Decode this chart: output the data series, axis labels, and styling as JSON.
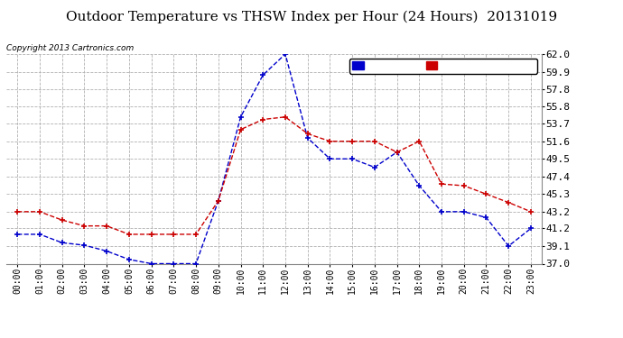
{
  "title": "Outdoor Temperature vs THSW Index per Hour (24 Hours)  20131019",
  "copyright": "Copyright 2013 Cartronics.com",
  "background_color": "#ffffff",
  "plot_background": "#ffffff",
  "grid_color": "#b0b0b0",
  "hours": [
    "00:00",
    "01:00",
    "02:00",
    "03:00",
    "04:00",
    "05:00",
    "06:00",
    "07:00",
    "08:00",
    "09:00",
    "10:00",
    "11:00",
    "12:00",
    "13:00",
    "14:00",
    "15:00",
    "16:00",
    "17:00",
    "18:00",
    "19:00",
    "20:00",
    "21:00",
    "22:00",
    "23:00"
  ],
  "thsw": [
    40.5,
    40.5,
    39.5,
    39.2,
    38.5,
    37.5,
    37.0,
    37.0,
    37.0,
    44.5,
    54.5,
    59.5,
    62.0,
    52.0,
    49.5,
    49.5,
    48.5,
    50.3,
    46.3,
    43.2,
    43.2,
    42.5,
    39.1,
    41.2
  ],
  "temperature": [
    43.2,
    43.2,
    42.2,
    41.5,
    41.5,
    40.5,
    40.5,
    40.5,
    40.5,
    44.5,
    53.0,
    54.2,
    54.5,
    52.5,
    51.6,
    51.6,
    51.6,
    50.3,
    51.6,
    46.5,
    46.3,
    45.3,
    44.3,
    43.2
  ],
  "thsw_color": "#0000cc",
  "temp_color": "#cc0000",
  "ylim": [
    37.0,
    62.0
  ],
  "yticks": [
    37.0,
    39.1,
    41.2,
    43.2,
    45.3,
    47.4,
    49.5,
    51.6,
    53.7,
    55.8,
    57.8,
    59.9,
    62.0
  ],
  "title_fontsize": 11,
  "legend_thsw_bg": "#0000cc",
  "legend_temp_bg": "#cc0000"
}
